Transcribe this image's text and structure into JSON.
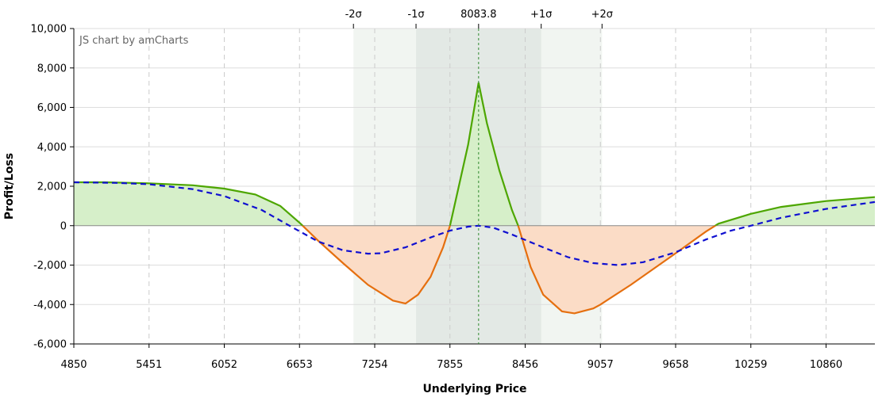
{
  "chart_data": {
    "type": "area",
    "credit": "JS chart by amCharts",
    "xlabel": "Underlying Price",
    "ylabel": "Profit/Loss",
    "xlim": [
      4850,
      11250
    ],
    "ylim": [
      -6000,
      10000
    ],
    "x_ticks": [
      "4850",
      "5451",
      "6052",
      "6653",
      "7254",
      "7855",
      "8456",
      "9057",
      "9658",
      "10259",
      "10860"
    ],
    "x_tick_values": [
      4850,
      5451,
      6052,
      6653,
      7254,
      7855,
      8456,
      9057,
      9658,
      10259,
      10860
    ],
    "y_ticks": [
      "10,000",
      "8,000",
      "6,000",
      "4,000",
      "2,000",
      "0",
      "-2,000",
      "-4,000",
      "-6,000"
    ],
    "y_tick_values": [
      10000,
      8000,
      6000,
      4000,
      2000,
      0,
      -2000,
      -4000,
      -6000
    ],
    "grid": true,
    "sigma_markers": [
      {
        "label": "-2σ",
        "value": 7084
      },
      {
        "label": "-1σ",
        "value": 7584
      },
      {
        "label": "8083.8",
        "value": 8083.8
      },
      {
        "label": "+1σ",
        "value": 8584
      },
      {
        "label": "+2σ",
        "value": 9070
      }
    ],
    "bands": {
      "two_sigma": [
        7084,
        9070
      ],
      "one_sigma": [
        7584,
        8584
      ]
    },
    "series": [
      {
        "type": "line-expiration",
        "color_positive": "#4da600",
        "color_negative": "#e56f0f",
        "fill_positive": "#d6efc9",
        "fill_negative": "#fbdcc6",
        "points": [
          [
            4850,
            2200
          ],
          [
            5100,
            2200
          ],
          [
            5451,
            2150
          ],
          [
            5800,
            2050
          ],
          [
            6052,
            1880
          ],
          [
            6300,
            1580
          ],
          [
            6500,
            1000
          ],
          [
            6653,
            150
          ],
          [
            6800,
            -750
          ],
          [
            7000,
            -1900
          ],
          [
            7200,
            -3000
          ],
          [
            7400,
            -3800
          ],
          [
            7500,
            -3950
          ],
          [
            7600,
            -3500
          ],
          [
            7700,
            -2600
          ],
          [
            7800,
            -1100
          ],
          [
            7855,
            0
          ],
          [
            8000,
            4100
          ],
          [
            8083.8,
            7250
          ],
          [
            8150,
            5200
          ],
          [
            8250,
            2800
          ],
          [
            8350,
            800
          ],
          [
            8400,
            0
          ],
          [
            8500,
            -2100
          ],
          [
            8600,
            -3500
          ],
          [
            8750,
            -4350
          ],
          [
            8850,
            -4450
          ],
          [
            9000,
            -4200
          ],
          [
            9057,
            -4000
          ],
          [
            9300,
            -3000
          ],
          [
            9658,
            -1400
          ],
          [
            9900,
            -300
          ],
          [
            10000,
            100
          ],
          [
            10259,
            600
          ],
          [
            10500,
            950
          ],
          [
            10860,
            1250
          ],
          [
            11250,
            1450
          ]
        ]
      },
      {
        "type": "line-today",
        "color": "#1010d0",
        "points": [
          [
            4850,
            2200
          ],
          [
            5200,
            2170
          ],
          [
            5451,
            2100
          ],
          [
            5800,
            1850
          ],
          [
            6052,
            1500
          ],
          [
            6350,
            800
          ],
          [
            6600,
            -100
          ],
          [
            6800,
            -800
          ],
          [
            7000,
            -1250
          ],
          [
            7200,
            -1420
          ],
          [
            7300,
            -1400
          ],
          [
            7500,
            -1100
          ],
          [
            7700,
            -600
          ],
          [
            7855,
            -250
          ],
          [
            8000,
            -50
          ],
          [
            8083.8,
            0
          ],
          [
            8200,
            -100
          ],
          [
            8350,
            -450
          ],
          [
            8600,
            -1100
          ],
          [
            8800,
            -1600
          ],
          [
            9000,
            -1900
          ],
          [
            9200,
            -2000
          ],
          [
            9400,
            -1850
          ],
          [
            9658,
            -1350
          ],
          [
            9900,
            -700
          ],
          [
            10100,
            -250
          ],
          [
            10259,
            0
          ],
          [
            10500,
            400
          ],
          [
            10860,
            850
          ],
          [
            11250,
            1200
          ]
        ]
      }
    ]
  }
}
